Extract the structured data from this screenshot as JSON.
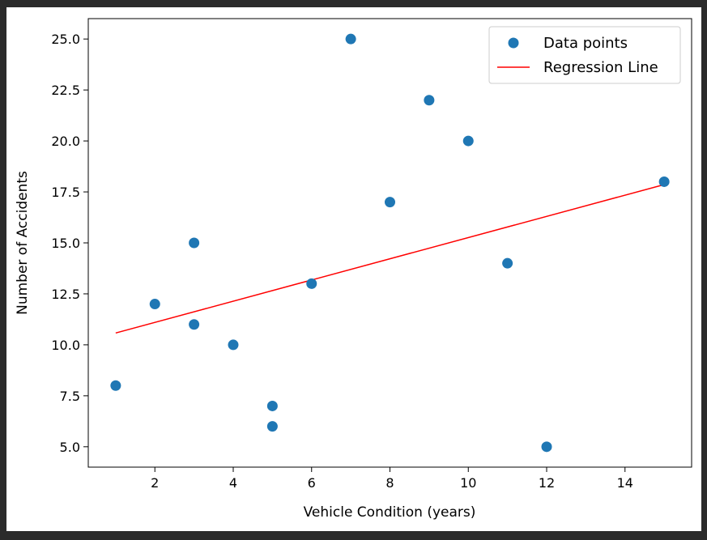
{
  "chart_data": {
    "type": "scatter",
    "xlabel": "Vehicle Condition (years)",
    "ylabel": "Number of Accidents",
    "xlim": [
      0.3,
      15.7
    ],
    "ylim": [
      4.0,
      26.0
    ],
    "xticks": [
      2,
      4,
      6,
      8,
      10,
      12,
      14
    ],
    "yticks": [
      5.0,
      7.5,
      10.0,
      12.5,
      15.0,
      17.5,
      20.0,
      22.5,
      25.0
    ],
    "grid": false,
    "legend_position": "top-right",
    "series": [
      {
        "name": "Data points",
        "kind": "scatter",
        "color": "#1f77b4",
        "points": [
          {
            "x": 1,
            "y": 8
          },
          {
            "x": 2,
            "y": 12
          },
          {
            "x": 3,
            "y": 15
          },
          {
            "x": 3,
            "y": 11
          },
          {
            "x": 4,
            "y": 10
          },
          {
            "x": 5,
            "y": 7
          },
          {
            "x": 5,
            "y": 6
          },
          {
            "x": 6,
            "y": 13
          },
          {
            "x": 7,
            "y": 25
          },
          {
            "x": 8,
            "y": 17
          },
          {
            "x": 9,
            "y": 22
          },
          {
            "x": 10,
            "y": 20
          },
          {
            "x": 11,
            "y": 14
          },
          {
            "x": 12,
            "y": 5
          },
          {
            "x": 15,
            "y": 18
          }
        ]
      },
      {
        "name": "Regression Line",
        "kind": "line",
        "color": "#ff0000",
        "points": [
          {
            "x": 1,
            "y": 10.58
          },
          {
            "x": 15,
            "y": 17.86
          }
        ]
      }
    ]
  }
}
